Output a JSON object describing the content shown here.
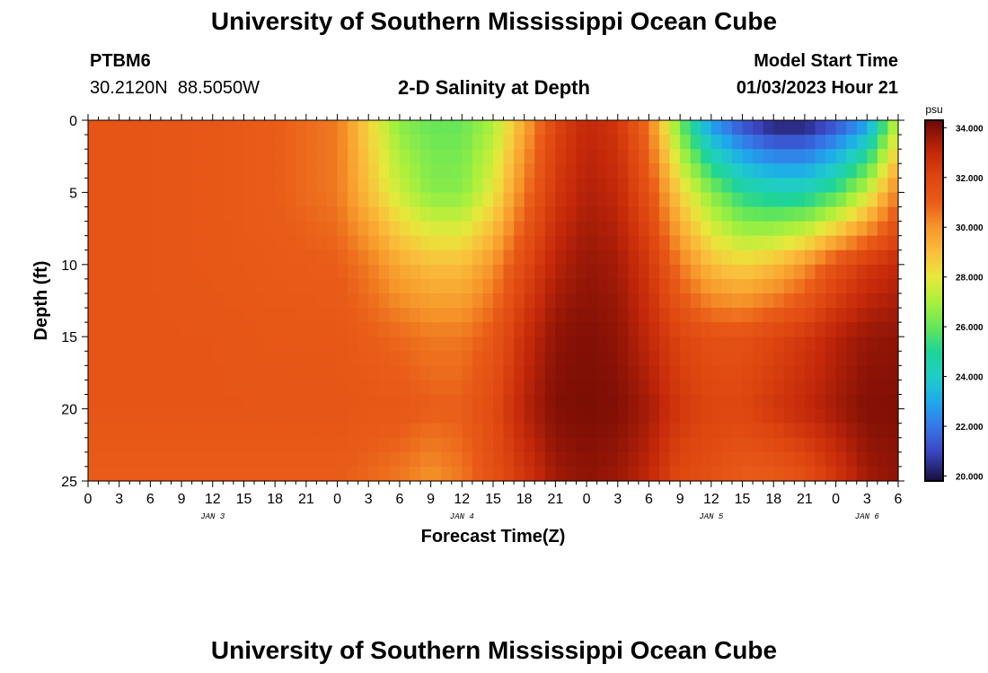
{
  "header": {
    "title": "University of Southern Mississippi Ocean Cube",
    "station_id": "PTBM6",
    "coords": "30.2120N  88.5050W",
    "chart_title": "2-D Salinity at Depth",
    "model_label": "Model Start Time",
    "model_time": "01/03/2023 Hour 21"
  },
  "footer": {
    "title": "University of Southern Mississippi Ocean Cube"
  },
  "chart_data": {
    "type": "heatmap",
    "title": "2-D Salinity at Depth",
    "xlabel": "Forecast Time(Z)",
    "ylabel": "Depth (ft)",
    "x_unit": "hours since JAN 3 00Z",
    "xlim": [
      0,
      78
    ],
    "ylim": [
      25,
      0
    ],
    "x_ticks": [
      0,
      3,
      6,
      9,
      12,
      15,
      18,
      21,
      24,
      27,
      30,
      33,
      36,
      39,
      42,
      45,
      48,
      51,
      54,
      57,
      60,
      63,
      66,
      69,
      72,
      75,
      78
    ],
    "x_tick_labels": [
      "0",
      "3",
      "6",
      "9",
      "12",
      "15",
      "18",
      "21",
      "0",
      "3",
      "6",
      "9",
      "12",
      "15",
      "18",
      "21",
      "0",
      "3",
      "6",
      "9",
      "12",
      "15",
      "18",
      "21",
      "0",
      "3",
      "6"
    ],
    "y_ticks": [
      0,
      5,
      10,
      15,
      20,
      25
    ],
    "y_tick_labels": [
      "0",
      "5",
      "10",
      "15",
      "20",
      "25"
    ],
    "date_labels": [
      {
        "x": 12,
        "label": "JAN 3"
      },
      {
        "x": 36,
        "label": "JAN 4"
      },
      {
        "x": 60,
        "label": "JAN 5"
      },
      {
        "x": 75,
        "label": "JAN 6"
      }
    ],
    "colorbar": {
      "unit": "psu",
      "min": 19.8,
      "max": 34.3,
      "ticks": [
        20.0,
        22.0,
        24.0,
        26.0,
        28.0,
        30.0,
        32.0,
        34.0
      ],
      "tick_labels": [
        "20.000",
        "22.000",
        "24.000",
        "26.000",
        "28.000",
        "30.000",
        "32.000",
        "34.000"
      ]
    },
    "depths_ft": [
      0,
      5,
      10,
      15,
      20,
      25
    ],
    "times_h": [
      0,
      6,
      12,
      18,
      24,
      27,
      30,
      33,
      36,
      39,
      42,
      45,
      48,
      51,
      54,
      57,
      60,
      63,
      66,
      69,
      72,
      75,
      78
    ],
    "salinity_psu": [
      [
        31.3,
        31.3,
        31.2,
        31.0,
        30.5,
        28.5,
        26.5,
        26.0,
        26.0,
        27.0,
        29.5,
        32.0,
        33.0,
        32.5,
        30.5,
        26.0,
        22.5,
        21.0,
        20.0,
        20.0,
        21.0,
        22.5,
        27.5
      ],
      [
        31.3,
        31.3,
        31.2,
        31.0,
        30.5,
        29.0,
        27.5,
        26.5,
        26.5,
        28.0,
        30.5,
        32.5,
        33.3,
        33.0,
        31.5,
        28.5,
        26.5,
        25.0,
        24.5,
        24.5,
        25.5,
        27.5,
        30.5
      ],
      [
        31.3,
        31.3,
        31.2,
        31.1,
        31.0,
        30.5,
        29.5,
        29.0,
        29.0,
        30.0,
        31.8,
        33.2,
        33.7,
        33.5,
        32.5,
        30.5,
        29.0,
        28.5,
        29.0,
        30.0,
        31.5,
        32.5,
        33.0
      ],
      [
        31.3,
        31.3,
        31.3,
        31.2,
        31.2,
        31.0,
        30.8,
        30.5,
        30.5,
        31.2,
        32.8,
        33.8,
        34.0,
        33.8,
        33.0,
        32.0,
        31.5,
        31.5,
        32.0,
        32.5,
        33.2,
        33.7,
        33.8
      ],
      [
        31.3,
        31.3,
        31.3,
        31.3,
        31.3,
        31.2,
        31.2,
        31.0,
        31.0,
        31.8,
        33.2,
        34.0,
        34.1,
        34.0,
        33.5,
        32.5,
        32.0,
        32.0,
        32.5,
        33.0,
        33.5,
        34.0,
        34.0
      ],
      [
        31.0,
        31.0,
        31.0,
        31.0,
        31.0,
        30.8,
        30.5,
        30.0,
        30.5,
        31.5,
        32.5,
        33.5,
        33.8,
        33.6,
        33.0,
        31.8,
        31.5,
        31.0,
        31.0,
        31.5,
        32.5,
        33.5,
        33.8
      ]
    ]
  }
}
